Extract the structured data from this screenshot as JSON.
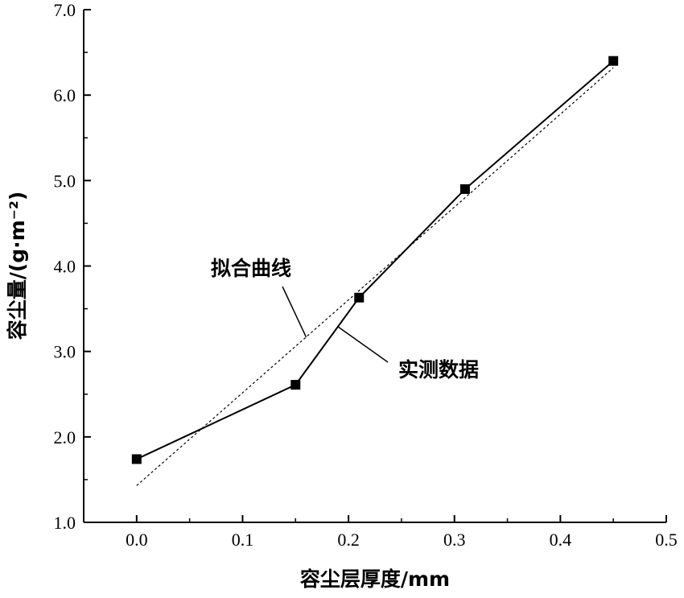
{
  "chart_data": {
    "type": "line",
    "xlabel": "容尘层厚度/mm",
    "ylabel": "容尘量/(g·m⁻²)",
    "xlim": [
      -0.05,
      0.5
    ],
    "ylim": [
      1.0,
      7.0
    ],
    "x_ticks": [
      "0.0",
      "0.1",
      "0.2",
      "0.3",
      "0.4",
      "0.5"
    ],
    "y_ticks": [
      "1.0",
      "2.0",
      "3.0",
      "4.0",
      "5.0",
      "6.0",
      "7.0"
    ],
    "x_tick_values": [
      0.0,
      0.1,
      0.2,
      0.3,
      0.4,
      0.5
    ],
    "y_tick_values": [
      1.0,
      2.0,
      3.0,
      4.0,
      5.0,
      6.0,
      7.0
    ],
    "series": [
      {
        "name": "实测数据",
        "style": "solid",
        "marker": "square",
        "color": "#000000",
        "x": [
          0.0,
          0.15,
          0.21,
          0.31,
          0.45
        ],
        "y": [
          1.74,
          2.61,
          3.63,
          4.9,
          6.4
        ]
      },
      {
        "name": "拟合曲线",
        "style": "dotted",
        "marker": "none",
        "color": "#000000",
        "x": [
          0.0,
          0.45
        ],
        "y": [
          1.43,
          6.32
        ]
      }
    ],
    "annotations": [
      {
        "text": "拟合曲线",
        "target_series": "拟合曲线"
      },
      {
        "text": "实测数据",
        "target_series": "实测数据"
      }
    ],
    "grid": false,
    "legend": "none"
  }
}
